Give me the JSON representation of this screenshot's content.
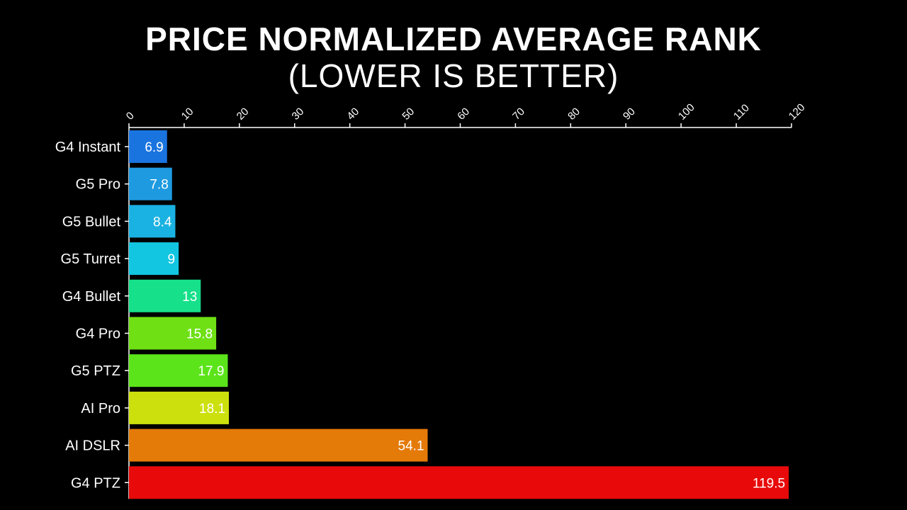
{
  "title": "PRICE NORMALIZED AVERAGE RANK",
  "subtitle": "(LOWER IS BETTER)",
  "chart_data": {
    "type": "bar",
    "orientation": "horizontal",
    "title": "PRICE NORMALIZED AVERAGE RANK",
    "subtitle": "(LOWER IS BETTER)",
    "xlabel": "",
    "ylabel": "",
    "xlim": [
      0,
      120
    ],
    "x_ticks": [
      0,
      10,
      20,
      30,
      40,
      50,
      60,
      70,
      80,
      90,
      100,
      110,
      120
    ],
    "x_axis_position": "top",
    "grid": false,
    "data_labels": true,
    "categories": [
      "G4 Instant",
      "G5 Pro",
      "G5 Bullet",
      "G5 Turret",
      "G4 Bullet",
      "G4 Pro",
      "G5 PTZ",
      "AI Pro",
      "AI DSLR",
      "G4 PTZ"
    ],
    "values": [
      6.9,
      7.8,
      8.4,
      9,
      13,
      15.8,
      17.9,
      18.1,
      54.1,
      119.5
    ],
    "value_labels": [
      "6.9",
      "7.8",
      "8.4",
      "9",
      "13",
      "15.8",
      "17.9",
      "18.1",
      "54.1",
      "119.5"
    ],
    "colors": [
      "#1a74e0",
      "#1e9ae0",
      "#1ab2e2",
      "#12c6e2",
      "#16e08a",
      "#6ee014",
      "#5ce41a",
      "#cce00e",
      "#e47a08",
      "#e80a0a"
    ]
  }
}
